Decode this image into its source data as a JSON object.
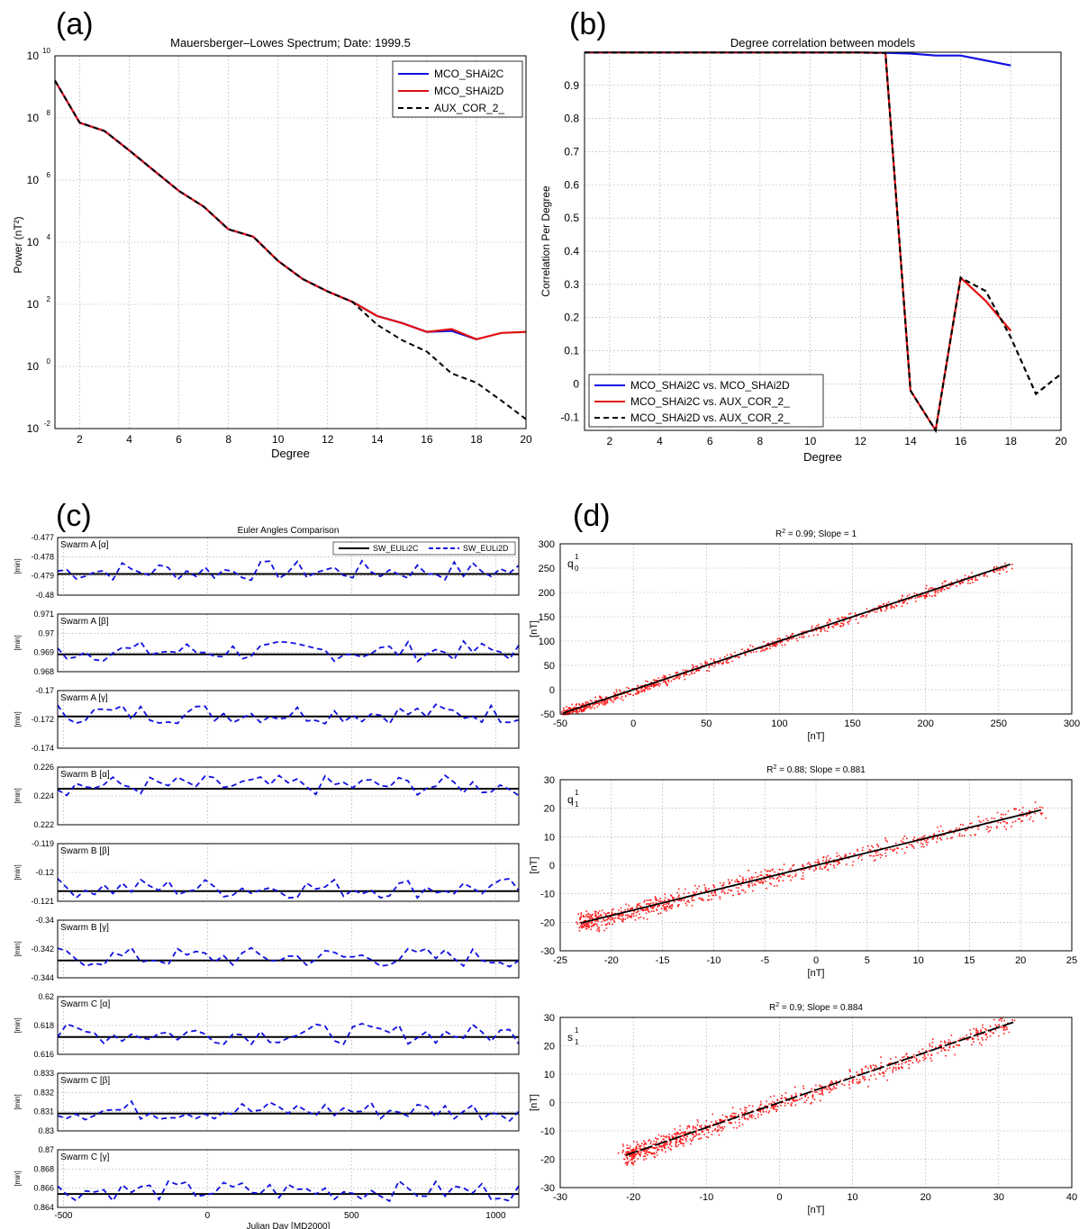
{
  "panels": {
    "a": {
      "letter": "(a)",
      "chart_data": {
        "type": "line",
        "title": "Mauersberger–Lowes Spectrum; Date: 1999.5",
        "xlabel": "Degree",
        "ylabel": "Power (nT²)",
        "xlim": [
          1,
          20
        ],
        "ylim_log10": [
          -2,
          10
        ],
        "yscale": "log",
        "xticks": [
          2,
          4,
          6,
          8,
          10,
          12,
          14,
          16,
          18,
          20
        ],
        "yticks_exponents": [
          -2,
          0,
          2,
          4,
          6,
          8,
          10
        ],
        "grid": true,
        "legend": "top-right",
        "x": [
          1,
          2,
          3,
          4,
          5,
          6,
          7,
          8,
          9,
          10,
          11,
          12,
          13,
          14,
          15,
          16,
          17,
          18,
          19,
          20
        ],
        "series": [
          {
            "name": "MCO_SHAi2C",
            "color": "#1010e0",
            "dash": "solid",
            "values": [
              1600000000.0,
              70000000.0,
              38000000.0,
              9000000.0,
              2000000.0,
              450000.0,
              140000.0,
              26000.0,
              15000.0,
              2500.0,
              650.0,
              260.0,
              120.0,
              42,
              25,
              13,
              14,
              7.5,
              null,
              null
            ]
          },
          {
            "name": "MCO_SHAi2D",
            "color": "#e01010",
            "dash": "solid",
            "values": [
              1600000000.0,
              70000000.0,
              38000000.0,
              9000000.0,
              2000000.0,
              450000.0,
              140000.0,
              26000.0,
              15000.0,
              2500.0,
              650.0,
              260.0,
              120.0,
              42,
              25,
              13,
              16,
              7.5,
              12,
              13
            ]
          },
          {
            "name": "AUX_COR_2_",
            "color": "#000000",
            "dash": "dashed",
            "values": [
              1600000000.0,
              70000000.0,
              38000000.0,
              9000000.0,
              2000000.0,
              450000.0,
              140000.0,
              26000.0,
              15000.0,
              2500.0,
              650.0,
              260.0,
              120.0,
              22,
              7,
              3,
              0.6,
              0.3,
              0.08,
              0.02
            ]
          }
        ]
      }
    },
    "b": {
      "letter": "(b)",
      "chart_data": {
        "type": "line",
        "title": "Degree correlation between models",
        "xlabel": "Degree",
        "ylabel": "Correlation Per Degree",
        "xlim": [
          1,
          20
        ],
        "ylim": [
          -0.14,
          1.0
        ],
        "xticks": [
          2,
          4,
          6,
          8,
          10,
          12,
          14,
          16,
          18,
          20
        ],
        "yticks": [
          -0.1,
          0,
          0.1,
          0.2,
          0.3,
          0.4,
          0.5,
          0.6,
          0.7,
          0.8,
          0.9
        ],
        "grid": true,
        "legend": "bottom-left",
        "series": [
          {
            "name": "MCO_SHAi2C vs. MCO_SHAi2D",
            "color": "#1010e0",
            "dash": "solid",
            "x": [
              1,
              2,
              3,
              4,
              5,
              6,
              7,
              8,
              9,
              10,
              11,
              12,
              13,
              14,
              15,
              16,
              17,
              18
            ],
            "values": [
              0.999,
              0.999,
              0.999,
              0.999,
              0.999,
              0.999,
              0.999,
              0.999,
              0.999,
              0.999,
              0.999,
              0.999,
              0.998,
              0.996,
              0.99,
              0.99,
              0.975,
              0.96
            ]
          },
          {
            "name": "MCO_SHAi2C vs.      AUX_COR_2_",
            "color": "#e01010",
            "dash": "solid",
            "x": [
              1,
              2,
              3,
              4,
              5,
              6,
              7,
              8,
              9,
              10,
              11,
              12,
              13,
              14,
              15,
              16,
              17,
              18
            ],
            "values": [
              0.999,
              0.999,
              0.999,
              0.999,
              0.999,
              0.999,
              0.999,
              0.999,
              0.999,
              0.999,
              0.999,
              0.999,
              0.998,
              -0.02,
              -0.14,
              0.32,
              0.25,
              0.16
            ]
          },
          {
            "name": "MCO_SHAi2D vs.      AUX_COR_2_",
            "color": "#000000",
            "dash": "dashed",
            "x": [
              1,
              2,
              3,
              4,
              5,
              6,
              7,
              8,
              9,
              10,
              11,
              12,
              13,
              14,
              15,
              16,
              17,
              18,
              19,
              20
            ],
            "values": [
              0.999,
              0.999,
              0.999,
              0.999,
              0.999,
              0.999,
              0.999,
              0.999,
              0.999,
              0.999,
              0.999,
              0.999,
              0.998,
              -0.02,
              -0.14,
              0.32,
              0.28,
              0.14,
              -0.03,
              0.03
            ]
          }
        ]
      }
    },
    "c": {
      "letter": "(c)",
      "title": "Euler   Angles Comparison",
      "xlabel": "Julian Day [MD2000]",
      "ylabel": "[min]",
      "xlim": [
        -520,
        1080
      ],
      "xticks": [
        -500,
        0,
        500,
        1000
      ],
      "legend": [
        "SW_EULi2C",
        "SW_EULi2D"
      ],
      "chart_data": {
        "type": "line",
        "subplots": [
          {
            "label": "Swarm A [α]",
            "ylim": [
              -0.48,
              -0.477
            ],
            "ticks": [
              -0.477,
              -0.478,
              -0.479,
              -0.48
            ],
            "tick_labels": [
              "-0.477",
              "-0.478",
              "-0.479",
              "-0.48"
            ],
            "ref": -0.4789
          },
          {
            "label": "Swarm A [β]",
            "ylim": [
              0.968,
              0.971
            ],
            "ticks": [
              0.971,
              0.97,
              0.969,
              0.968
            ],
            "tick_labels": [
              "0.971",
              "0.97",
              "0.969",
              "0.968"
            ],
            "ref": 0.9689
          },
          {
            "label": "Swarm A [γ]",
            "ylim": [
              -0.174,
              -0.17
            ],
            "ticks": [
              -0.17,
              -0.172,
              -0.174
            ],
            "tick_labels": [
              "-0.17",
              "-0.172",
              "-0.174"
            ],
            "ref": -0.1718
          },
          {
            "label": "Swarm B [α]",
            "ylim": [
              0.222,
              0.226
            ],
            "ticks": [
              0.226,
              0.224,
              0.222
            ],
            "tick_labels": [
              "0.226",
              "0.224",
              "0.222"
            ],
            "ref": 0.2245
          },
          {
            "label": "Swarm B [β]",
            "ylim": [
              -0.121,
              -0.119
            ],
            "ticks": [
              -0.119,
              -0.12,
              -0.121
            ],
            "tick_labels": [
              "-0.119",
              "-0.12",
              "-0.121"
            ],
            "ref": -0.12065
          },
          {
            "label": "Swarm B [γ]",
            "ylim": [
              -0.344,
              -0.34
            ],
            "ticks": [
              -0.34,
              -0.342,
              -0.344
            ],
            "tick_labels": [
              "-0.34",
              "-0.342",
              "-0.344"
            ],
            "ref": -0.3428
          },
          {
            "label": "Swarm C [α]",
            "ylim": [
              0.616,
              0.62
            ],
            "ticks": [
              0.62,
              0.618,
              0.616
            ],
            "tick_labels": [
              "0.62",
              "0.618",
              "0.616"
            ],
            "ref": 0.6172
          },
          {
            "label": "Swarm C [β]",
            "ylim": [
              0.83,
              0.833
            ],
            "ticks": [
              0.833,
              0.832,
              0.831,
              0.83
            ],
            "tick_labels": [
              "0.833",
              "0.832",
              "0.831",
              "0.83"
            ],
            "ref": 0.8309
          },
          {
            "label": "Swarm C [γ]",
            "ylim": [
              0.864,
              0.87
            ],
            "ticks": [
              0.87,
              0.868,
              0.866,
              0.864
            ],
            "tick_labels": [
              "0.87",
              "0.868",
              "0.866",
              "0.864"
            ],
            "ref": 0.8654
          }
        ]
      }
    },
    "d": {
      "letter": "(d)",
      "chart_data": {
        "type": "scatter",
        "subplots": [
          {
            "title_pre": "R",
            "title_post": " = 0.99; Slope = 1",
            "label_main": "q",
            "label_sup": "1",
            "label_sub": "0",
            "xlim": [
              -50,
              300
            ],
            "ylim": [
              -50,
              300
            ],
            "xticks": [
              -50,
              0,
              50,
              100,
              150,
              200,
              250,
              300
            ],
            "yticks": [
              -50,
              0,
              50,
              100,
              150,
              200,
              250,
              300
            ],
            "xlabel": "[nT]",
            "ylabel": "[nT]",
            "slope": 1.0,
            "fit_x": [
              -48,
              258
            ],
            "spread": 7
          },
          {
            "title_pre": "R",
            "title_post": " = 0.88; Slope = 0.881",
            "label_main": "q",
            "label_sup": "1",
            "label_sub": "1",
            "xlim": [
              -25,
              25
            ],
            "ylim": [
              -30,
              30
            ],
            "xticks": [
              -25,
              -20,
              -15,
              -10,
              -5,
              0,
              5,
              10,
              15,
              20,
              25
            ],
            "yticks": [
              -30,
              -20,
              -10,
              0,
              10,
              20,
              30
            ],
            "xlabel": "[nT]",
            "ylabel": "[nT]",
            "slope": 0.881,
            "fit_x": [
              -23,
              22
            ],
            "spread": 2.2
          },
          {
            "title_pre": "R",
            "title_post": " = 0.9; Slope = 0.884",
            "label_main": "s",
            "label_sup": "1",
            "label_sub": "1",
            "xlim": [
              -30,
              40
            ],
            "ylim": [
              -30,
              30
            ],
            "xticks": [
              -30,
              -20,
              -10,
              0,
              10,
              20,
              30,
              40
            ],
            "yticks": [
              -30,
              -20,
              -10,
              0,
              10,
              20,
              30
            ],
            "xlabel": "[nT]",
            "ylabel": "[nT]",
            "slope": 0.884,
            "fit_x": [
              -21,
              32
            ],
            "spread": 2.3
          }
        ]
      }
    }
  }
}
